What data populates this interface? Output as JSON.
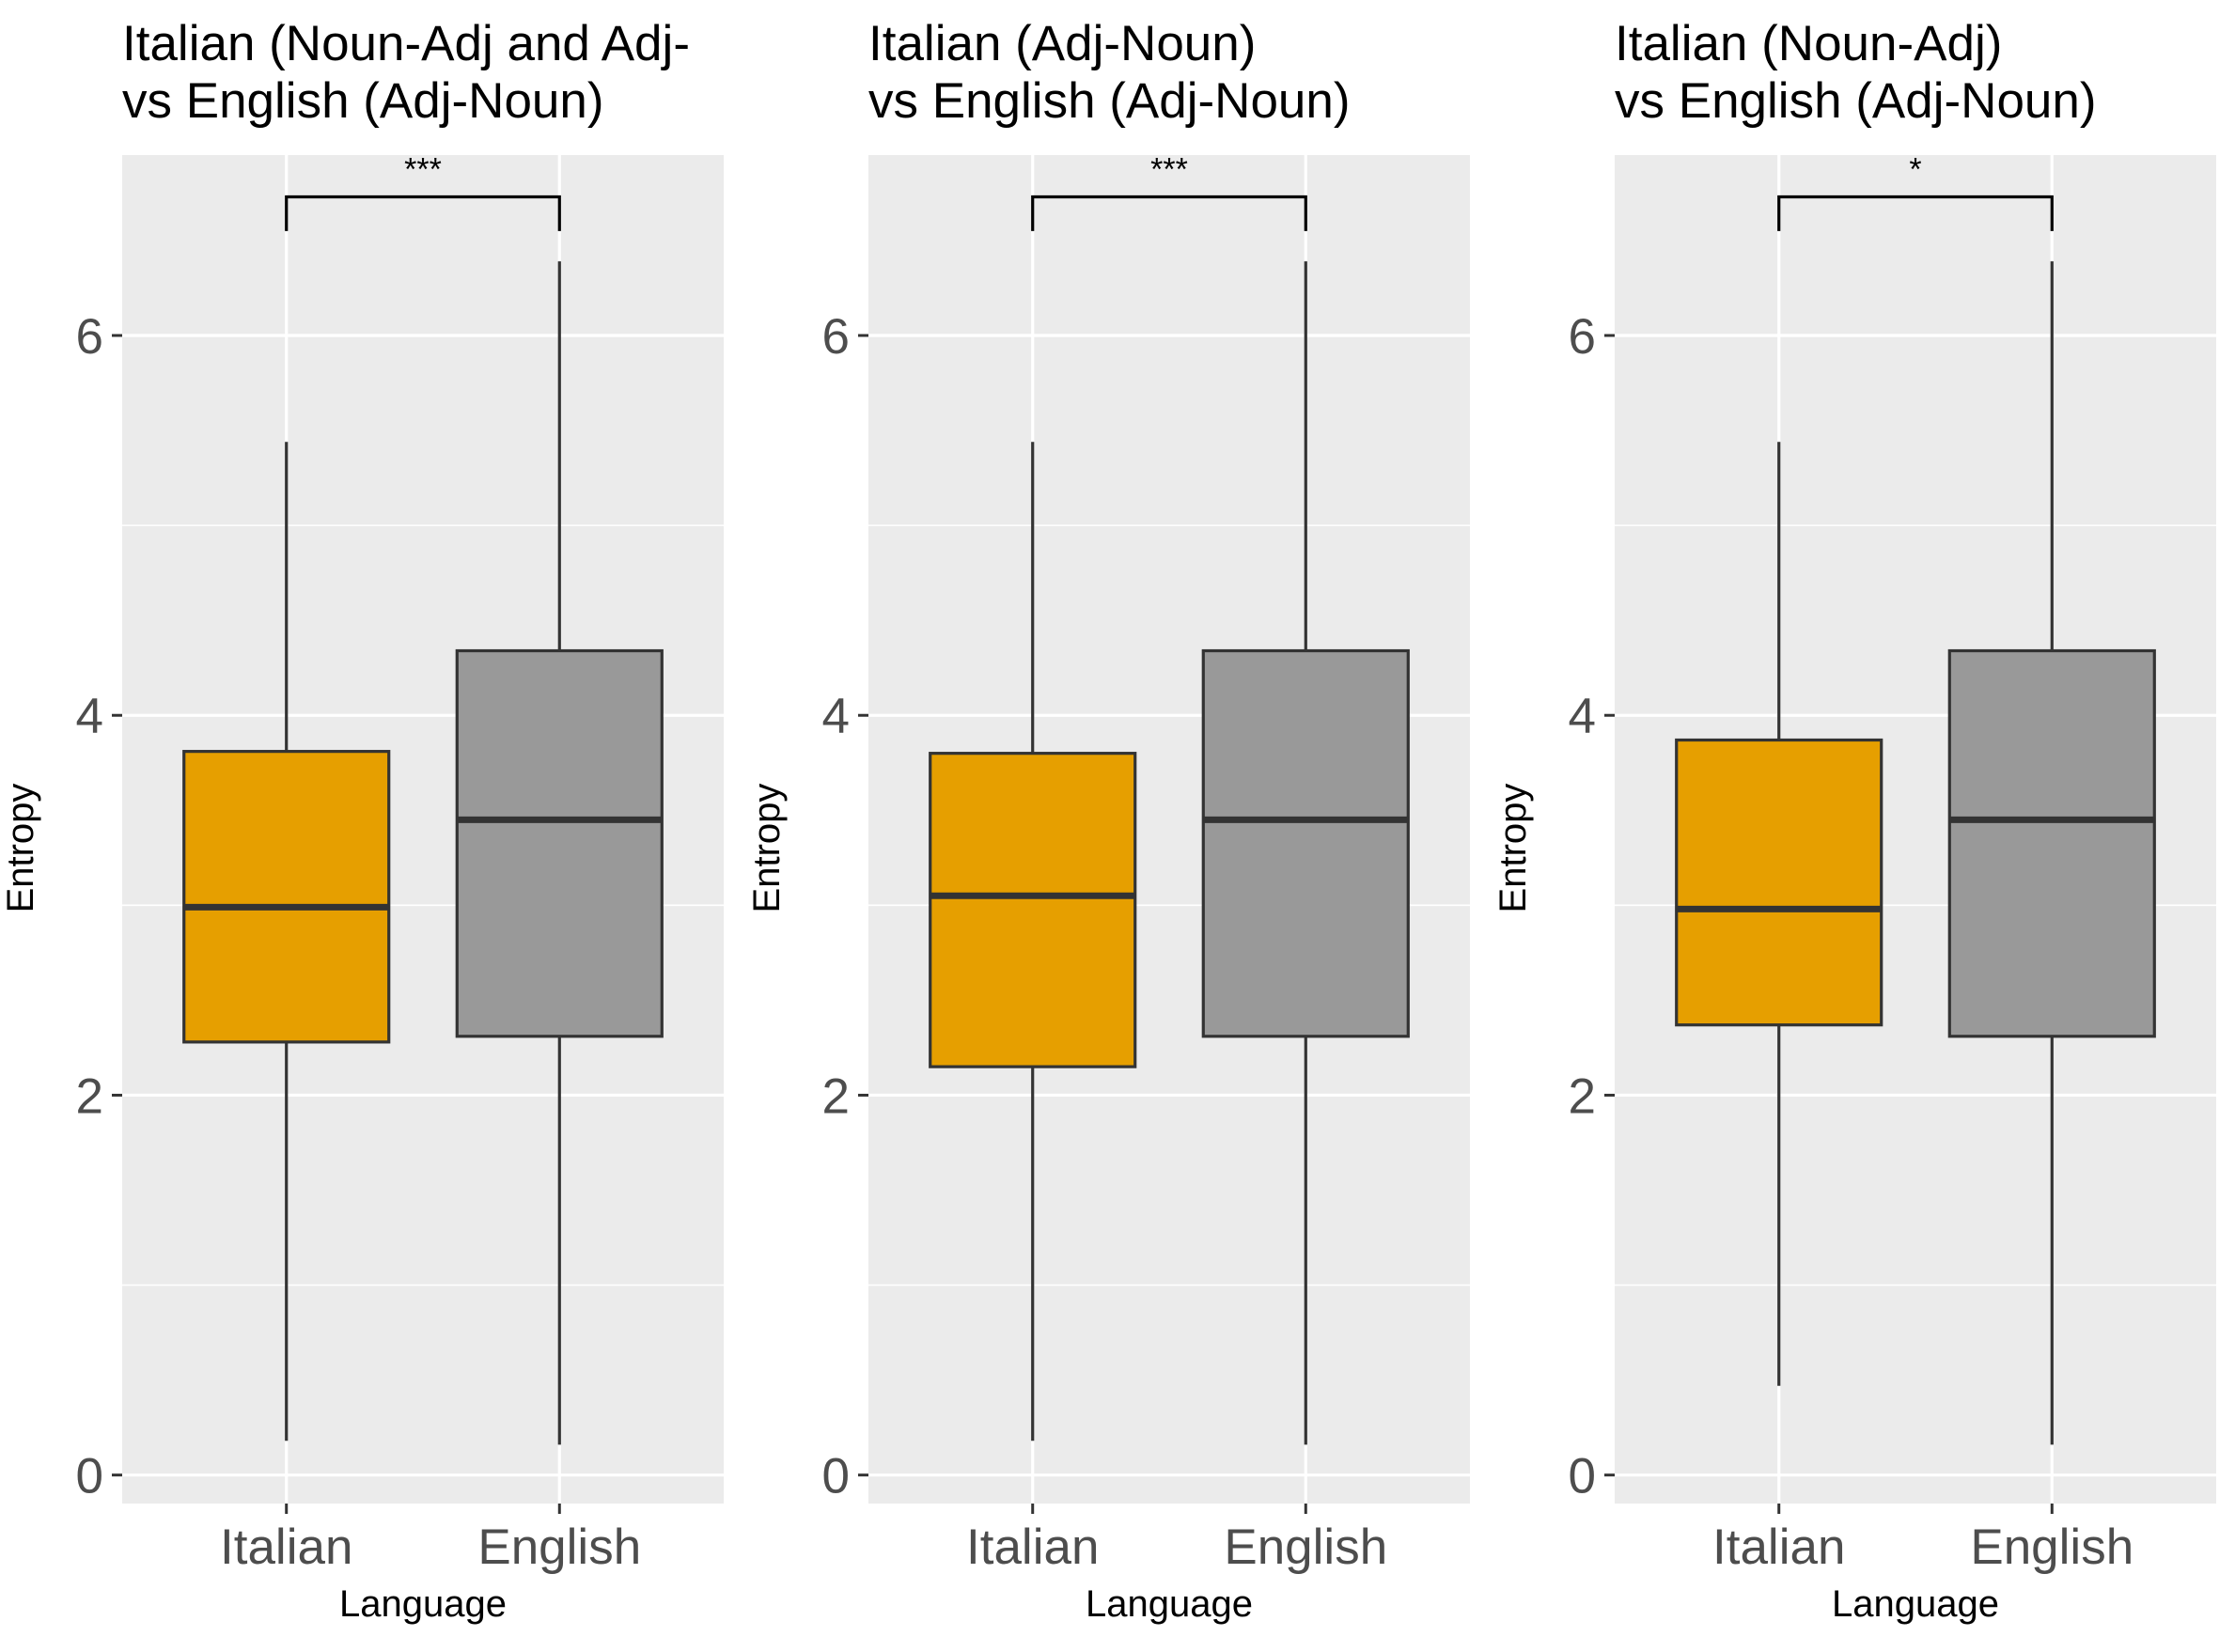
{
  "colors": {
    "panel_background": "#ebebeb",
    "grid": "#ffffff",
    "italian_fill": "#e69f00",
    "english_fill": "#999999",
    "box_outline": "#333333",
    "tick_text": "#4d4d4d"
  },
  "chart_data": [
    {
      "type": "boxplot",
      "title_lines": [
        "Italian (Noun-Adj and Adj-",
        "vs English (Adj-Noun)"
      ],
      "xlabel": "Language",
      "ylabel": "Entropy",
      "ylim": [
        -0.15,
        6.95
      ],
      "y_ticks": [
        0,
        2,
        4,
        6
      ],
      "y_tick_labels": [
        "0",
        "2",
        "4",
        "6"
      ],
      "grid": true,
      "categories": [
        "Italian",
        "English"
      ],
      "boxes": [
        {
          "name": "Italian",
          "whisker_low": 0.18,
          "q1": 2.28,
          "median": 2.99,
          "q3": 3.81,
          "whisker_high": 5.44
        },
        {
          "name": "English",
          "whisker_low": 0.16,
          "q1": 2.31,
          "median": 3.45,
          "q3": 4.34,
          "whisker_high": 6.39
        }
      ],
      "significance": {
        "label": "***",
        "between": [
          "Italian",
          "English"
        ],
        "bracket_y": 6.73,
        "tick_bottom": 6.55
      }
    },
    {
      "type": "boxplot",
      "title_lines": [
        "Italian (Adj-Noun)",
        "vs English (Adj-Noun)"
      ],
      "xlabel": "Language",
      "ylabel": "Entropy",
      "ylim": [
        -0.15,
        6.95
      ],
      "y_ticks": [
        0,
        2,
        4,
        6
      ],
      "y_tick_labels": [
        "0",
        "2",
        "4",
        "6"
      ],
      "grid": true,
      "categories": [
        "Italian",
        "English"
      ],
      "boxes": [
        {
          "name": "Italian",
          "whisker_low": 0.18,
          "q1": 2.15,
          "median": 3.05,
          "q3": 3.8,
          "whisker_high": 5.44
        },
        {
          "name": "English",
          "whisker_low": 0.16,
          "q1": 2.31,
          "median": 3.45,
          "q3": 4.34,
          "whisker_high": 6.39
        }
      ],
      "significance": {
        "label": "***",
        "between": [
          "Italian",
          "English"
        ],
        "bracket_y": 6.73,
        "tick_bottom": 6.55
      }
    },
    {
      "type": "boxplot",
      "title_lines": [
        "Italian (Noun-Adj)",
        "vs English (Adj-Noun)"
      ],
      "xlabel": "Language",
      "ylabel": "Entropy",
      "ylim": [
        -0.15,
        6.95
      ],
      "y_ticks": [
        0,
        2,
        4,
        6
      ],
      "y_tick_labels": [
        "0",
        "2",
        "4",
        "6"
      ],
      "grid": true,
      "categories": [
        "Italian",
        "English"
      ],
      "boxes": [
        {
          "name": "Italian",
          "whisker_low": 0.47,
          "q1": 2.37,
          "median": 2.98,
          "q3": 3.87,
          "whisker_high": 5.44
        },
        {
          "name": "English",
          "whisker_low": 0.16,
          "q1": 2.31,
          "median": 3.45,
          "q3": 4.34,
          "whisker_high": 6.39
        }
      ],
      "significance": {
        "label": "*",
        "between": [
          "Italian",
          "English"
        ],
        "bracket_y": 6.73,
        "tick_bottom": 6.55
      }
    }
  ]
}
